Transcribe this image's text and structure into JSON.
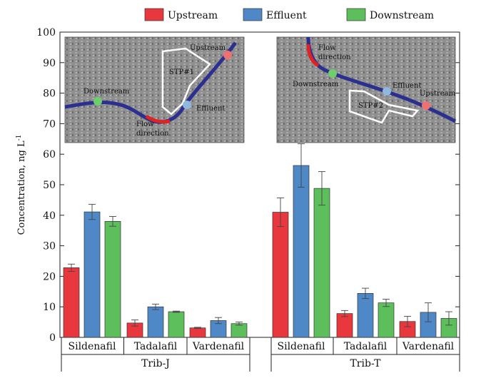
{
  "chart_data": {
    "type": "bar",
    "ylabel": "Concentration, ng L",
    "ylabel_superscript": "-1",
    "ylim": [
      0,
      100
    ],
    "yticks": [
      0,
      10,
      20,
      30,
      40,
      50,
      60,
      70,
      80,
      90,
      100
    ],
    "legend_position": "top-center",
    "series": [
      {
        "name": "Upstream",
        "color": "#e8383d"
      },
      {
        "name": "Effluent",
        "color": "#4e88c7"
      },
      {
        "name": "Downstream",
        "color": "#5cbf5c"
      }
    ],
    "groups": [
      {
        "name": "Trib-J",
        "compounds": [
          {
            "name": "Sildenafil",
            "values": [
              22.8,
              41.1,
              38.0
            ],
            "errors": [
              1.2,
              2.5,
              1.6
            ]
          },
          {
            "name": "Tadalafil",
            "values": [
              4.7,
              10.0,
              8.4
            ],
            "errors": [
              1.0,
              0.9,
              0.2
            ]
          },
          {
            "name": "Vardenafil",
            "values": [
              3.1,
              5.5,
              4.5
            ],
            "errors": [
              0.2,
              1.0,
              0.5
            ]
          }
        ]
      },
      {
        "name": "Trib-T",
        "compounds": [
          {
            "name": "Sildenafil",
            "values": [
              41.0,
              56.3,
              48.8
            ],
            "errors": [
              4.7,
              7.1,
              5.5
            ]
          },
          {
            "name": "Tadalafil",
            "values": [
              7.8,
              14.4,
              11.3
            ],
            "errors": [
              1.0,
              1.7,
              1.2
            ]
          },
          {
            "name": "Vardenafil",
            "values": [
              5.2,
              8.2,
              6.2
            ],
            "errors": [
              1.7,
              3.1,
              2.2
            ]
          }
        ]
      }
    ],
    "insets": [
      {
        "labels": [
          "Upstream",
          "STP#1",
          "Downstream",
          "Effluent",
          "Flow",
          "direction"
        ]
      },
      {
        "labels": [
          "Flow",
          "direction",
          "Downstream",
          "Effluent",
          "Upstream",
          "STP#2"
        ]
      }
    ]
  }
}
